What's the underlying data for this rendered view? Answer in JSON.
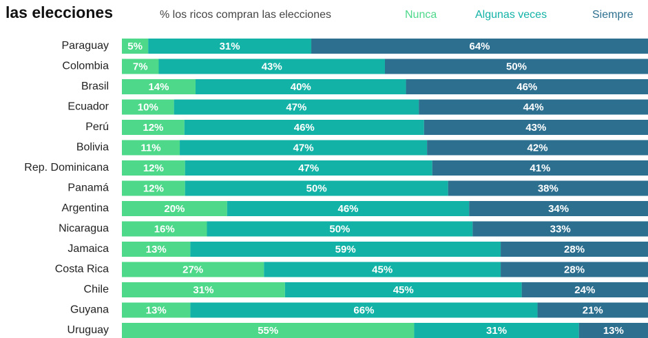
{
  "chart_data": {
    "type": "stacked_bar_horizontal",
    "title": "las elecciones",
    "subtitle": "% los ricos compran las elecciones",
    "categories": [
      "Paraguay",
      "Colombia",
      "Brasil",
      "Ecuador",
      "Perú",
      "Bolivia",
      "Rep. Dominicana",
      "Panamá",
      "Argentina",
      "Nicaragua",
      "Jamaica",
      "Costa Rica",
      "Chile",
      "Guyana",
      "Uruguay"
    ],
    "series": [
      {
        "name": "Nunca",
        "color": "#4dd88a",
        "values": [
          5,
          7,
          14,
          10,
          12,
          11,
          12,
          12,
          20,
          16,
          13,
          27,
          31,
          13,
          55
        ],
        "value_labels": [
          "5%",
          "7%",
          "14%",
          "10%",
          "12%",
          "11%",
          "12%",
          "12%",
          "20%",
          "16%",
          "13%",
          "27%",
          "31%",
          "13%",
          "55%"
        ]
      },
      {
        "name": "Algunas veces",
        "color": "#12b2a6",
        "values": [
          31,
          43,
          40,
          47,
          46,
          47,
          47,
          50,
          46,
          50,
          59,
          45,
          45,
          66,
          31
        ],
        "value_labels": [
          "31%",
          "43%",
          "40%",
          "47%",
          "46%",
          "47%",
          "47%",
          "50%",
          "46%",
          "50%",
          "59%",
          "45%",
          "45%",
          "66%",
          "31%"
        ]
      },
      {
        "name": "Siempre",
        "color": "#2d6f8f",
        "values": [
          64,
          50,
          46,
          44,
          43,
          42,
          41,
          38,
          34,
          33,
          28,
          28,
          24,
          21,
          13
        ],
        "value_labels": [
          "64%",
          "50%",
          "46%",
          "44%",
          "43%",
          "42%",
          "41%",
          "38%",
          "34%",
          "33%",
          "28%",
          "28%",
          "24%",
          "21%",
          "13%"
        ]
      }
    ]
  }
}
